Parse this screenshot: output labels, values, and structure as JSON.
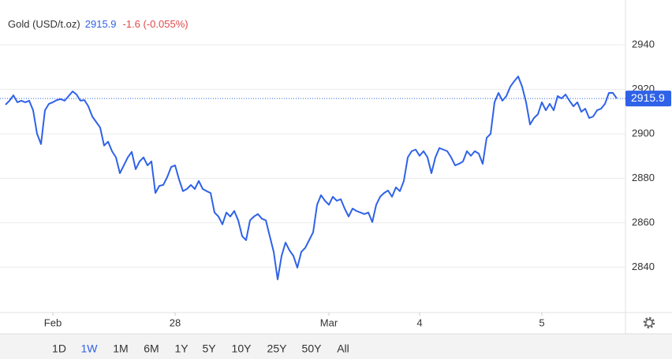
{
  "chart_data": {
    "type": "line",
    "title": "Gold (USD/t.oz)",
    "last_price": 2915.9,
    "change": "-1.6 (-0.055%)",
    "color": "#2f62e8",
    "up_color": "#2f62e8",
    "down_color": "#e04848",
    "series": [
      {
        "color": "#2f62e8",
        "values": [
          2913.1,
          2914.9,
          2917.3,
          2914.2,
          2914.9,
          2914.2,
          2914.9,
          2910.6,
          2900,
          2895.4,
          2910.6,
          2913.5,
          2914.2,
          2915.2,
          2915.6,
          2914.9,
          2917,
          2919.1,
          2917.7,
          2914.9,
          2915.2,
          2912.4,
          2907.8,
          2905.3,
          2902.8,
          2894.7,
          2896.5,
          2892.2,
          2889.4,
          2882.3,
          2885.8,
          2889.4,
          2891.9,
          2884.1,
          2887.6,
          2889.4,
          2885.8,
          2887.6,
          2873.4,
          2876.6,
          2877,
          2880.5,
          2885.1,
          2885.8,
          2879.5,
          2874.2,
          2875.2,
          2877,
          2875.2,
          2878.8,
          2875.2,
          2874.2,
          2873.4,
          2864.6,
          2862.8,
          2859.3,
          2864.6,
          2862.8,
          2865.3,
          2861.1,
          2854,
          2852.2,
          2861.1,
          2862.8,
          2863.9,
          2861.8,
          2861.1,
          2854,
          2846.9,
          2834.5,
          2845.1,
          2851.1,
          2847.6,
          2845.1,
          2839.8,
          2846.9,
          2848.7,
          2852.2,
          2855.7,
          2868.1,
          2872.4,
          2869.9,
          2868.1,
          2871.7,
          2869.9,
          2870.6,
          2866.4,
          2862.8,
          2866.4,
          2865.3,
          2864.6,
          2863.9,
          2864.6,
          2860.3,
          2868.1,
          2871.7,
          2873.4,
          2874.5,
          2871.7,
          2875.9,
          2874.2,
          2878.8,
          2889.4,
          2892.2,
          2892.9,
          2890.1,
          2892.2,
          2889.4,
          2882.3,
          2889.4,
          2893.6,
          2892.9,
          2892.2,
          2889.4,
          2885.8,
          2886.5,
          2887.6,
          2892.2,
          2890.1,
          2892.2,
          2891.1,
          2886.5,
          2898.2,
          2900,
          2914.2,
          2918.4,
          2914.9,
          2917,
          2921.2,
          2923.7,
          2925.8,
          2921.2,
          2914.2,
          2904.2,
          2907.1,
          2908.8,
          2914.2,
          2910.6,
          2913.5,
          2910.6,
          2917,
          2915.9,
          2917.7,
          2914.9,
          2912.4,
          2914.2,
          2909.9,
          2911.3,
          2907.1,
          2907.8,
          2910.6,
          2911.3,
          2913.5,
          2918.4,
          2918.4,
          2915.9
        ]
      }
    ],
    "xlim": [
      0,
      155
    ],
    "xticks": [
      {
        "value": 12,
        "label": "Feb"
      },
      {
        "value": 43,
        "label": "28"
      },
      {
        "value": 82,
        "label": "Mar"
      },
      {
        "value": 105,
        "label": "4"
      },
      {
        "value": 136,
        "label": "5"
      }
    ],
    "ylim": [
      2819.6,
      2960.2
    ],
    "yticks": [
      2840,
      2860,
      2880,
      2900,
      2920,
      2940
    ],
    "grid": true
  },
  "ranges": [
    "1D",
    "1W",
    "1M",
    "6M",
    "1Y",
    "5Y",
    "10Y",
    "25Y",
    "50Y",
    "All"
  ],
  "active_range_index": 1
}
